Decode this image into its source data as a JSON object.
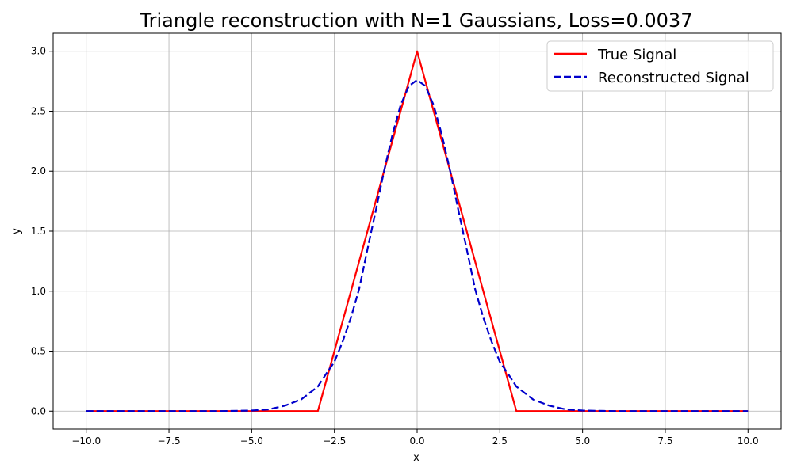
{
  "chart_data": {
    "type": "line",
    "title": "Triangle reconstruction with N=1 Gaussians, Loss=0.0037",
    "xlabel": "x",
    "ylabel": "y",
    "xlim": [
      -11.0,
      11.0
    ],
    "ylim": [
      -0.15,
      3.15
    ],
    "grid": true,
    "legend_position": "upper right",
    "xticks": [
      -10.0,
      -7.5,
      -5.0,
      -2.5,
      0.0,
      2.5,
      5.0,
      7.5,
      10.0
    ],
    "xtick_labels": [
      "−10.0",
      "−7.5",
      "−5.0",
      "−2.5",
      "0.0",
      "2.5",
      "5.0",
      "7.5",
      "10.0"
    ],
    "yticks": [
      0.0,
      0.5,
      1.0,
      1.5,
      2.0,
      2.5,
      3.0
    ],
    "ytick_labels": [
      "0.0",
      "0.5",
      "1.0",
      "1.5",
      "2.0",
      "2.5",
      "3.0"
    ],
    "series": [
      {
        "name": "True Signal",
        "color": "#ff0000",
        "style": "solid",
        "x": [
          -10.0,
          -3.0,
          0.0,
          3.0,
          10.0
        ],
        "y": [
          0.0,
          0.0,
          3.0,
          0.0,
          0.0
        ]
      },
      {
        "name": "Reconstructed Signal",
        "color": "#0000cc",
        "style": "dashed",
        "x": [
          -10.0,
          -9.0,
          -8.0,
          -7.0,
          -6.0,
          -5.0,
          -4.5,
          -4.0,
          -3.5,
          -3.0,
          -2.75,
          -2.5,
          -2.25,
          -2.0,
          -1.75,
          -1.5,
          -1.25,
          -1.0,
          -0.75,
          -0.5,
          -0.25,
          0.0,
          0.25,
          0.5,
          0.75,
          1.0,
          1.25,
          1.5,
          1.75,
          2.0,
          2.25,
          2.5,
          2.75,
          3.0,
          3.5,
          4.0,
          4.5,
          5.0,
          6.0,
          7.0,
          8.0,
          9.0,
          10.0
        ],
        "y": [
          0.0,
          0.0,
          0.0,
          0.0,
          0.0,
          0.005,
          0.014,
          0.045,
          0.098,
          0.205,
          0.31,
          0.41,
          0.58,
          0.78,
          1.02,
          1.35,
          1.67,
          2.0,
          2.3,
          2.55,
          2.71,
          2.76,
          2.71,
          2.55,
          2.3,
          2.0,
          1.67,
          1.35,
          1.02,
          0.78,
          0.58,
          0.41,
          0.31,
          0.205,
          0.098,
          0.045,
          0.014,
          0.005,
          0.0,
          0.0,
          0.0,
          0.0,
          0.0
        ]
      }
    ]
  }
}
